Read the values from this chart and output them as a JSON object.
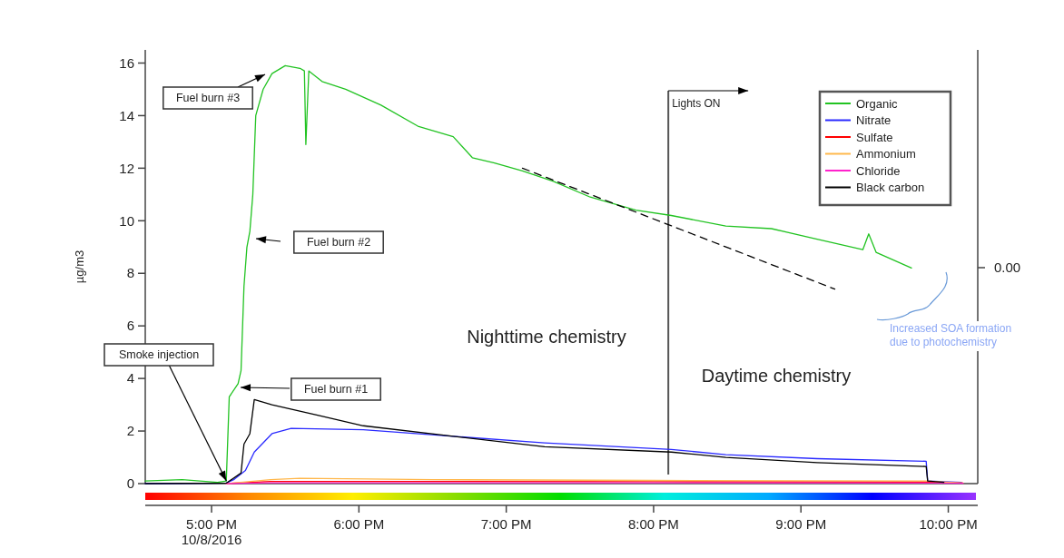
{
  "chart_data": {
    "type": "line",
    "ylabel": "µg/m3",
    "xlim": [
      16.55,
      22.2
    ],
    "xticks": [
      {
        "value": 17,
        "label": "5:00 PM\n10/8/2016"
      },
      {
        "value": 18,
        "label": "6:00 PM"
      },
      {
        "value": 19,
        "label": "7:00 PM"
      },
      {
        "value": 20,
        "label": "8:00 PM"
      },
      {
        "value": 21,
        "label": "9:00 PM"
      },
      {
        "value": 22,
        "label": "10:00 PM"
      }
    ],
    "ylim": [
      0,
      16.5
    ],
    "yticks": [
      0,
      2,
      4,
      6,
      8,
      10,
      12,
      14,
      16
    ],
    "grid": false,
    "legend": "top right",
    "marker": "none",
    "line_style": "solid",
    "series": [
      {
        "name": "Organic",
        "color": "#22c322",
        "x": [
          16.55,
          16.8,
          17.04,
          17.1,
          17.12,
          17.18,
          17.2,
          17.22,
          17.24,
          17.26,
          17.28,
          17.3,
          17.35,
          17.41,
          17.5,
          17.6,
          17.63,
          17.64,
          17.66,
          17.75,
          17.91,
          18.15,
          18.4,
          18.64,
          18.77,
          18.92,
          19.11,
          19.32,
          19.57,
          19.88,
          20.12,
          20.49,
          20.8,
          21.11,
          21.42,
          21.46,
          21.51,
          21.75
        ],
        "values": [
          0.1,
          0.15,
          0.05,
          0.1,
          3.3,
          3.8,
          4.3,
          7.5,
          9.0,
          9.6,
          11.0,
          14.0,
          15.0,
          15.6,
          15.9,
          15.8,
          15.7,
          12.9,
          15.7,
          15.3,
          15.0,
          14.4,
          13.6,
          13.2,
          12.4,
          12.2,
          11.9,
          11.5,
          10.9,
          10.4,
          10.2,
          9.8,
          9.7,
          9.3,
          8.9,
          9.5,
          8.8,
          8.2
        ]
      },
      {
        "name": "Nitrate",
        "color": "#2a2aff",
        "x": [
          16.55,
          17.1,
          17.15,
          17.23,
          17.29,
          17.41,
          17.54,
          18.03,
          18.64,
          19.26,
          20.12,
          20.49,
          21.11,
          21.85,
          21.86,
          22.09
        ],
        "values": [
          0,
          0.02,
          0.15,
          0.5,
          1.2,
          1.9,
          2.1,
          2.05,
          1.8,
          1.55,
          1.3,
          1.1,
          0.95,
          0.85,
          0.1,
          0.05
        ]
      },
      {
        "name": "Sulfate",
        "color": "#ff0000",
        "x": [
          17.1,
          17.4,
          18.5,
          20.0,
          21.85,
          22.1
        ],
        "values": [
          0,
          0.08,
          0.08,
          0.07,
          0.06,
          0.02
        ]
      },
      {
        "name": "Ammonium",
        "color": "#ffb84d",
        "x": [
          17.1,
          17.4,
          17.6,
          18.5,
          20.0,
          21.85,
          22.1
        ],
        "values": [
          0,
          0.15,
          0.2,
          0.15,
          0.12,
          0.1,
          0.02
        ]
      },
      {
        "name": "Chloride",
        "color": "#ff22cc",
        "x": [
          17.1,
          17.4,
          18.5,
          20.0,
          21.85,
          22.1
        ],
        "values": [
          0,
          0.03,
          0.03,
          0.03,
          0.02,
          0.01
        ]
      },
      {
        "name": "Black carbon",
        "color": "#000000",
        "x": [
          16.55,
          17.1,
          17.2,
          17.22,
          17.26,
          17.29,
          17.41,
          17.72,
          18.03,
          18.64,
          19.26,
          20.12,
          20.49,
          21.11,
          21.85,
          21.86,
          21.97
        ],
        "values": [
          0,
          0.02,
          0.4,
          1.5,
          1.9,
          3.2,
          3.0,
          2.6,
          2.2,
          1.8,
          1.4,
          1.2,
          1.0,
          0.8,
          0.65,
          0.1,
          0.05
        ]
      },
      {
        "type": "line",
        "color": "#000000",
        "line_style": "dashed",
        "x": [
          19.11,
          21.23
        ],
        "values": [
          12.0,
          7.4
        ]
      }
    ],
    "ref_lines": [
      {
        "axis": "x",
        "value": 20.1,
        "label": "Lights ON",
        "color": "#555555"
      }
    ],
    "annotations": [
      "Fuel burn #3",
      "Fuel burn #2",
      "Fuel burn #1",
      {
        "text": "Smoke injection",
        "x": 17.1,
        "y": 0.1
      },
      "Nighttime chemistry",
      "Daytime chemistry",
      "Increased SOA formation due to photochemistry",
      "0.00"
    ]
  }
}
